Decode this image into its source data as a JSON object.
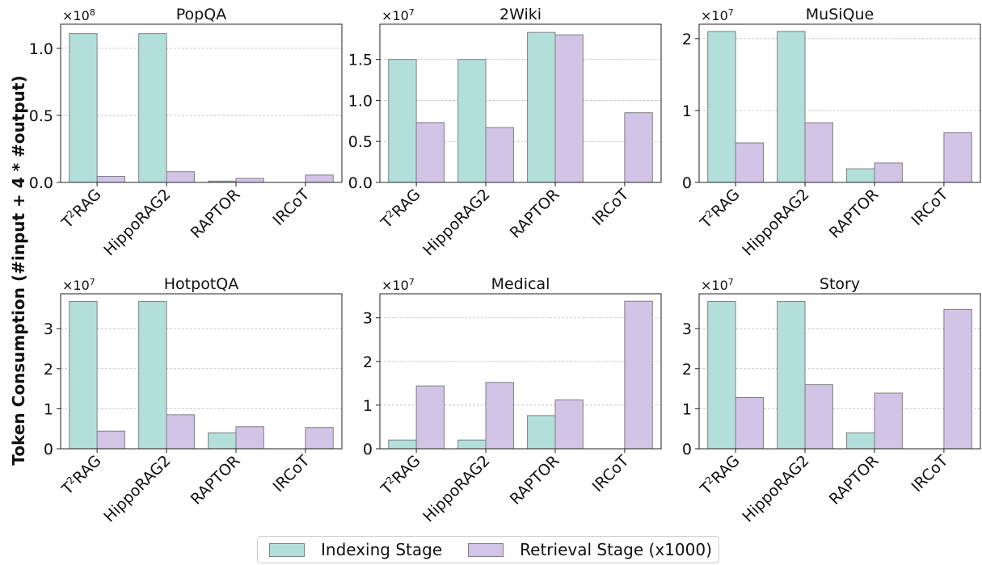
{
  "figure": {
    "ylabel": "Token Consumption (#input + 4 * #output)"
  },
  "legend": {
    "items": [
      {
        "label": "Indexing Stage",
        "color": "#b3dfdb"
      },
      {
        "label": "Retrieval Stage (x1000)",
        "color": "#d1c4e7"
      }
    ]
  },
  "colors": {
    "edge": "#7f7f7f",
    "grid": "#bdbdbd",
    "axis": "#222222"
  },
  "chart_data": [
    {
      "type": "bar",
      "title": "PopQA",
      "multiplier_base": "×10",
      "multiplier_exp": "8",
      "categories": [
        "T²RAG",
        "HippoRAG2",
        "RAPTOR",
        "IRCoT"
      ],
      "ylim": [
        0,
        1.18
      ],
      "yticks": [
        0,
        0.5,
        1.0
      ],
      "ytick_labels": [
        "0.0",
        "0.5",
        "1.0"
      ],
      "series": [
        {
          "name": "Indexing Stage",
          "values": [
            1.11,
            1.11,
            0.01,
            0
          ]
        },
        {
          "name": "Retrieval Stage (x1000)",
          "values": [
            0.045,
            0.08,
            0.03,
            0.055
          ]
        }
      ]
    },
    {
      "type": "bar",
      "title": "2Wiki",
      "multiplier_base": "×10",
      "multiplier_exp": "7",
      "categories": [
        "T²RAG",
        "HippoRAG2",
        "RAPTOR",
        "IRCoT"
      ],
      "ylim": [
        0,
        1.93
      ],
      "yticks": [
        0,
        0.5,
        1.0,
        1.5
      ],
      "ytick_labels": [
        "0.0",
        "0.5",
        "1.0",
        "1.5"
      ],
      "series": [
        {
          "name": "Indexing Stage",
          "values": [
            1.5,
            1.5,
            1.83,
            0
          ]
        },
        {
          "name": "Retrieval Stage (x1000)",
          "values": [
            0.73,
            0.67,
            1.8,
            0.85
          ]
        }
      ]
    },
    {
      "type": "bar",
      "title": "MuSiQue",
      "multiplier_base": "×10",
      "multiplier_exp": "7",
      "categories": [
        "T²RAG",
        "HippoRAG2",
        "RAPTOR",
        "IRCoT"
      ],
      "ylim": [
        0,
        2.2
      ],
      "yticks": [
        0,
        1,
        2
      ],
      "ytick_labels": [
        "0",
        "1",
        "2"
      ],
      "series": [
        {
          "name": "Indexing Stage",
          "values": [
            2.1,
            2.1,
            0.19,
            0
          ]
        },
        {
          "name": "Retrieval Stage (x1000)",
          "values": [
            0.55,
            0.83,
            0.27,
            0.69
          ]
        }
      ]
    },
    {
      "type": "bar",
      "title": "HotpotQA",
      "multiplier_base": "×10",
      "multiplier_exp": "7",
      "categories": [
        "T²RAG",
        "HippoRAG2",
        "RAPTOR",
        "IRCoT"
      ],
      "ylim": [
        0,
        3.87
      ],
      "yticks": [
        0,
        1,
        2,
        3
      ],
      "ytick_labels": [
        "0",
        "1",
        "2",
        "3"
      ],
      "series": [
        {
          "name": "Indexing Stage",
          "values": [
            3.68,
            3.68,
            0.4,
            0
          ]
        },
        {
          "name": "Retrieval Stage (x1000)",
          "values": [
            0.44,
            0.85,
            0.55,
            0.53
          ]
        }
      ]
    },
    {
      "type": "bar",
      "title": "Medical",
      "multiplier_base": "×10",
      "multiplier_exp": "7",
      "categories": [
        "T²RAG",
        "HippoRAG2",
        "RAPTOR",
        "IRCoT"
      ],
      "ylim": [
        0,
        3.55
      ],
      "yticks": [
        0,
        1,
        2,
        3
      ],
      "ytick_labels": [
        "0",
        "1",
        "2",
        "3"
      ],
      "series": [
        {
          "name": "Indexing Stage",
          "values": [
            0.2,
            0.2,
            0.76,
            0
          ]
        },
        {
          "name": "Retrieval Stage (x1000)",
          "values": [
            1.44,
            1.52,
            1.12,
            3.38
          ]
        }
      ]
    },
    {
      "type": "bar",
      "title": "Story",
      "multiplier_base": "×10",
      "multiplier_exp": "7",
      "categories": [
        "T²RAG",
        "HippoRAG2",
        "RAPTOR",
        "IRCoT"
      ],
      "ylim": [
        0,
        3.87
      ],
      "yticks": [
        0,
        1,
        2,
        3
      ],
      "ytick_labels": [
        "0",
        "1",
        "2",
        "3"
      ],
      "series": [
        {
          "name": "Indexing Stage",
          "values": [
            3.68,
            3.68,
            0.4,
            0
          ]
        },
        {
          "name": "Retrieval Stage (x1000)",
          "values": [
            1.28,
            1.6,
            1.39,
            3.48
          ]
        }
      ]
    }
  ]
}
